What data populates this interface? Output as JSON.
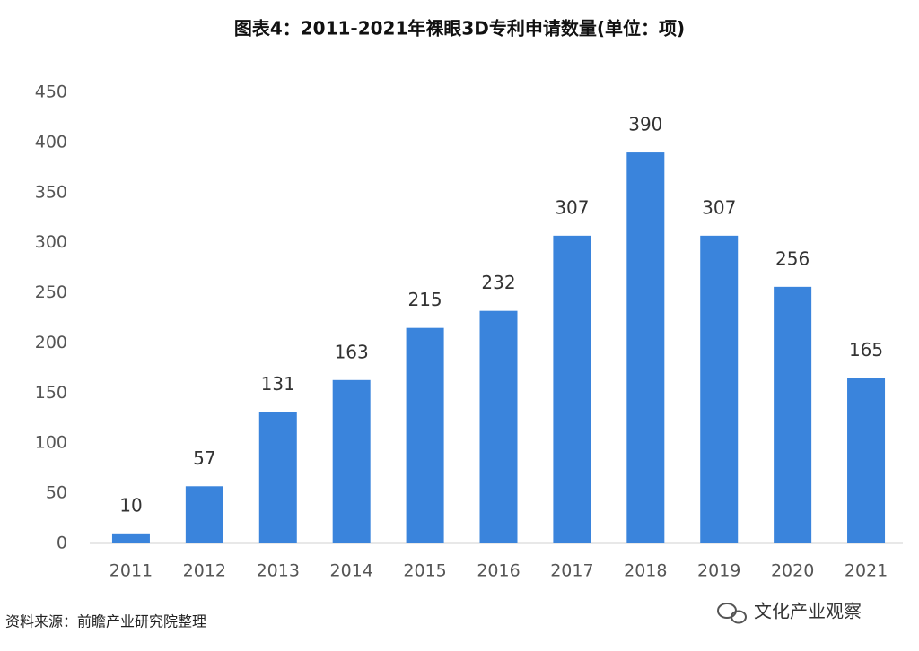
{
  "chart_data": {
    "type": "bar",
    "title": "图表4：2011-2021年裸眼3D专利申请数量(单位：项)",
    "categories": [
      "2011",
      "2012",
      "2013",
      "2014",
      "2015",
      "2016",
      "2017",
      "2018",
      "2019",
      "2020",
      "2021"
    ],
    "values": [
      10,
      57,
      131,
      163,
      215,
      232,
      307,
      390,
      307,
      256,
      165
    ],
    "color": "#3a84dc",
    "ylim": [
      0,
      450
    ],
    "yticks": [
      0,
      50,
      100,
      150,
      200,
      250,
      300,
      350,
      400,
      450
    ],
    "grid": false,
    "source": "资料来源：前瞻产业研究院整理",
    "watermark": "文化产业观察"
  }
}
